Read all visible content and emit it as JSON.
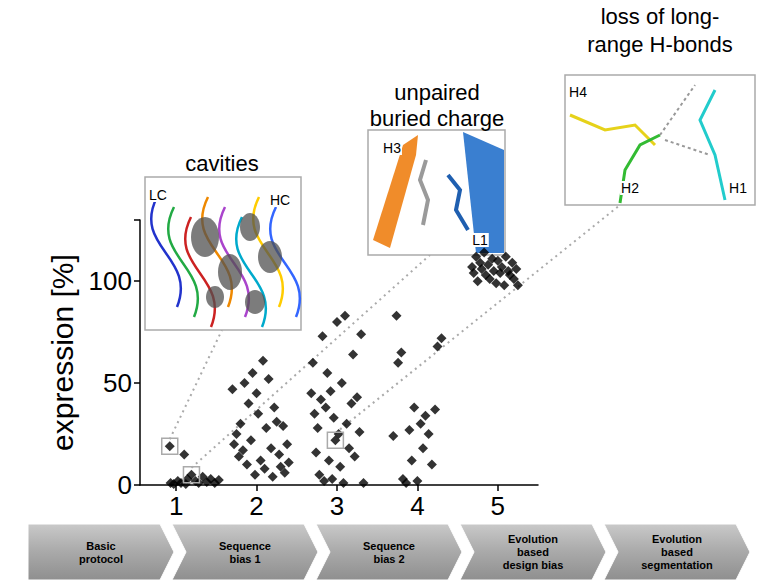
{
  "chart_data": {
    "type": "scatter",
    "y_label": "expression [%]",
    "color": "#000000",
    "marker": "diamond",
    "grid": false,
    "xlim": [
      0.55,
      5.5
    ],
    "xticks": [
      1,
      2,
      3,
      4,
      5
    ],
    "ylim": [
      0,
      130
    ],
    "yticks": [
      0,
      50,
      100
    ],
    "x": [
      0.92,
      0.93,
      0.97,
      1.02,
      1.06,
      1.1,
      1.14,
      1.19,
      1.24,
      1.28,
      1.33,
      1.38,
      1.43,
      1.48,
      1.53,
      1.12,
      1.7,
      1.72,
      1.75,
      1.78,
      1.8,
      1.83,
      1.85,
      1.88,
      1.9,
      1.93,
      1.95,
      1.98,
      2.0,
      2.02,
      2.05,
      2.08,
      2.1,
      2.12,
      2.15,
      2.18,
      2.2,
      2.22,
      2.25,
      2.28,
      2.3,
      2.33,
      2.35,
      2.38,
      2.4,
      2.68,
      2.7,
      2.72,
      2.74,
      2.76,
      2.78,
      2.8,
      2.82,
      2.84,
      2.86,
      2.88,
      2.9,
      2.92,
      2.94,
      2.96,
      2.98,
      3.0,
      3.02,
      3.04,
      3.06,
      3.08,
      3.1,
      3.12,
      3.15,
      3.18,
      3.2,
      3.22,
      3.25,
      3.28,
      3.3,
      3.33,
      3.7,
      3.74,
      3.76,
      3.8,
      3.82,
      3.86,
      3.9,
      3.93,
      3.96,
      4.0,
      4.04,
      4.07,
      4.1,
      4.14,
      4.18,
      4.22,
      4.25,
      4.3,
      4.68,
      4.7,
      4.73,
      4.75,
      4.78,
      4.8,
      4.83,
      4.85,
      4.88,
      4.9,
      4.93,
      4.95,
      4.98,
      5.0,
      5.03,
      5.05,
      5.08,
      5.1,
      5.13,
      5.15,
      5.18,
      5.2,
      5.23,
      5.25
    ],
    "values": [
      19,
      1,
      0.5,
      2,
      1,
      15,
      3,
      5,
      2,
      1,
      4,
      1.5,
      3,
      1,
      2.5,
      0.5,
      47,
      20,
      25,
      14,
      30,
      17,
      50,
      10,
      40,
      22,
      55,
      5,
      45,
      35,
      12,
      61,
      8,
      28,
      52,
      18,
      4,
      38,
      31,
      15,
      9,
      29,
      6,
      20,
      11,
      45,
      60,
      35,
      16,
      28,
      5,
      42,
      73,
      2,
      38,
      55,
      12,
      46,
      3,
      33,
      22,
      80,
      25,
      9,
      50,
      1,
      83,
      30,
      18,
      40,
      64,
      14,
      43,
      26,
      74,
      1,
      24,
      83,
      60,
      65,
      3,
      1,
      27,
      12,
      38,
      2,
      30,
      18,
      34,
      25,
      10,
      37,
      68,
      72,
      107,
      104,
      112,
      100,
      109,
      106,
      114,
      103,
      108,
      101,
      111,
      105,
      99,
      110,
      104,
      107,
      98,
      112,
      105,
      103,
      109,
      101,
      106,
      98
    ],
    "annotations": [
      {
        "title_lines": [
          "cavities"
        ],
        "labels": [
          "LC",
          "HC"
        ],
        "x": 0.92,
        "y": 19
      },
      {
        "title_lines": [
          "unpaired",
          "buried charge"
        ],
        "labels": [
          "H3",
          "L1"
        ],
        "x": 1.19,
        "y": 5
      },
      {
        "title_lines": [
          "loss of long-",
          "range H-bonds"
        ],
        "labels": [
          "H4",
          "H2",
          "H1"
        ],
        "x": 2.98,
        "y": 22
      }
    ],
    "stages": [
      "Basic protocol",
      "Sequence bias 1",
      "Sequence bias 2",
      "Evolution based design bias",
      "Evolution based segmentation"
    ]
  }
}
